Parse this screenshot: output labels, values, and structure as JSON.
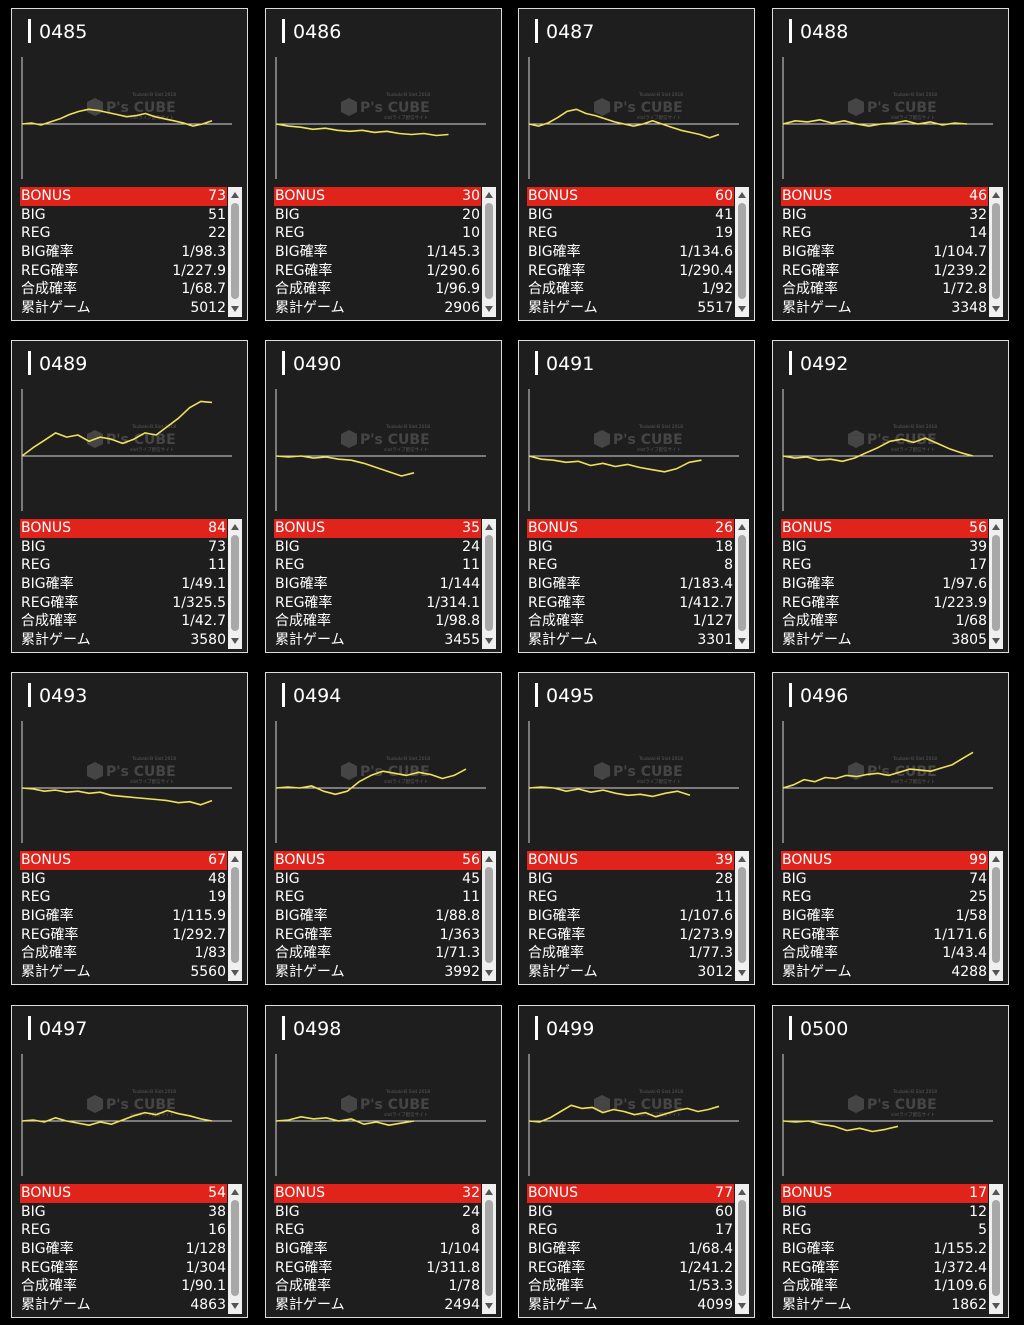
{
  "labels": {
    "bonus": "BONUS",
    "big": "BIG",
    "reg": "REG",
    "big_rate": "BIG確率",
    "reg_rate": "REG確率",
    "combined_rate": "合成確率",
    "total_games": "累計ゲーム"
  },
  "watermark": {
    "brand": "P's CUBE",
    "top": "Tsubaki-B Slot 2018",
    "sub": "slotライブ配信サイト"
  },
  "colors": {
    "accent_red": "#e0241b",
    "line_yellow": "#f0e05a",
    "card_bg": "#1e1e1e"
  },
  "machines": [
    {
      "id": "0485",
      "bonus": "73",
      "big": "51",
      "reg": "22",
      "big_rate": "1/98.3",
      "reg_rate": "1/227.9",
      "combined_rate": "1/68.7",
      "total_games": "5012",
      "series": [
        0,
        1,
        -1,
        2,
        5,
        9,
        12,
        14,
        13,
        11,
        9,
        7,
        8,
        10,
        7,
        5,
        3,
        1,
        -2,
        0,
        3
      ]
    },
    {
      "id": "0486",
      "bonus": "30",
      "big": "20",
      "reg": "10",
      "big_rate": "1/145.3",
      "reg_rate": "1/290.6",
      "combined_rate": "1/96.9",
      "total_games": "2906",
      "series": [
        0,
        -2,
        -3,
        -5,
        -4,
        -6,
        -7,
        -6,
        -8,
        -7,
        -9,
        -10,
        -9,
        -11,
        -10
      ]
    },
    {
      "id": "0487",
      "bonus": "60",
      "big": "41",
      "reg": "19",
      "big_rate": "1/134.6",
      "reg_rate": "1/290.4",
      "combined_rate": "1/92",
      "total_games": "5517",
      "series": [
        0,
        -2,
        1,
        6,
        12,
        14,
        10,
        8,
        5,
        2,
        0,
        -2,
        0,
        3,
        0,
        -3,
        -6,
        -8,
        -10,
        -13,
        -10
      ]
    },
    {
      "id": "0488",
      "bonus": "46",
      "big": "32",
      "reg": "14",
      "big_rate": "1/104.7",
      "reg_rate": "1/239.2",
      "combined_rate": "1/72.8",
      "total_games": "3348",
      "series": [
        0,
        3,
        2,
        4,
        1,
        3,
        0,
        -2,
        0,
        1,
        3,
        0,
        2,
        -1,
        1,
        0
      ]
    },
    {
      "id": "0489",
      "bonus": "84",
      "big": "73",
      "reg": "11",
      "big_rate": "1/49.1",
      "reg_rate": "1/325.5",
      "combined_rate": "1/42.7",
      "total_games": "3580",
      "series": [
        0,
        8,
        15,
        22,
        18,
        20,
        14,
        18,
        16,
        12,
        16,
        22,
        20,
        28,
        36,
        46,
        52,
        51
      ]
    },
    {
      "id": "0490",
      "bonus": "35",
      "big": "24",
      "reg": "11",
      "big_rate": "1/144",
      "reg_rate": "1/314.1",
      "combined_rate": "1/98.8",
      "total_games": "3455",
      "series": [
        0,
        -1,
        0,
        -2,
        -1,
        -3,
        -4,
        -7,
        -11,
        -15,
        -19,
        -16
      ]
    },
    {
      "id": "0491",
      "bonus": "26",
      "big": "18",
      "reg": "8",
      "big_rate": "1/183.4",
      "reg_rate": "1/412.7",
      "combined_rate": "1/127",
      "total_games": "3301",
      "series": [
        0,
        -3,
        -4,
        -6,
        -5,
        -9,
        -7,
        -10,
        -8,
        -11,
        -13,
        -15,
        -12,
        -6,
        -4
      ]
    },
    {
      "id": "0492",
      "bonus": "56",
      "big": "39",
      "reg": "17",
      "big_rate": "1/97.6",
      "reg_rate": "1/223.9",
      "combined_rate": "1/68",
      "total_games": "3805",
      "series": [
        0,
        -2,
        -1,
        -4,
        -3,
        -5,
        -2,
        3,
        8,
        14,
        16,
        13,
        17,
        12,
        7,
        3,
        0
      ]
    },
    {
      "id": "0493",
      "bonus": "67",
      "big": "48",
      "reg": "19",
      "big_rate": "1/115.9",
      "reg_rate": "1/292.7",
      "combined_rate": "1/83",
      "total_games": "5560",
      "series": [
        0,
        -1,
        -3,
        -2,
        -4,
        -3,
        -5,
        -4,
        -7,
        -8,
        -9,
        -10,
        -11,
        -12,
        -14,
        -13,
        -16,
        -12
      ]
    },
    {
      "id": "0494",
      "bonus": "56",
      "big": "45",
      "reg": "11",
      "big_rate": "1/88.8",
      "reg_rate": "1/363",
      "combined_rate": "1/71.3",
      "total_games": "3992",
      "series": [
        0,
        1,
        0,
        2,
        -3,
        -6,
        -3,
        6,
        12,
        16,
        14,
        12,
        15,
        13,
        9,
        12,
        18
      ]
    },
    {
      "id": "0495",
      "bonus": "39",
      "big": "28",
      "reg": "11",
      "big_rate": "1/107.6",
      "reg_rate": "1/273.9",
      "combined_rate": "1/77.3",
      "total_games": "3012",
      "series": [
        0,
        1,
        0,
        -3,
        -1,
        -4,
        -2,
        -5,
        -7,
        -6,
        -8,
        -5,
        -3,
        -7
      ]
    },
    {
      "id": "0496",
      "bonus": "99",
      "big": "74",
      "reg": "25",
      "big_rate": "1/58",
      "reg_rate": "1/171.6",
      "combined_rate": "1/43.4",
      "total_games": "4288",
      "series": [
        0,
        3,
        8,
        6,
        10,
        9,
        12,
        11,
        13,
        14,
        12,
        15,
        18,
        17,
        16,
        19,
        22,
        28,
        34
      ]
    },
    {
      "id": "0497",
      "bonus": "54",
      "big": "38",
      "reg": "16",
      "big_rate": "1/128",
      "reg_rate": "1/304",
      "combined_rate": "1/90.1",
      "total_games": "4863",
      "series": [
        0,
        1,
        -1,
        3,
        0,
        -2,
        -4,
        -1,
        -3,
        1,
        5,
        8,
        6,
        10,
        7,
        5,
        2,
        0
      ]
    },
    {
      "id": "0498",
      "bonus": "32",
      "big": "24",
      "reg": "8",
      "big_rate": "1/104",
      "reg_rate": "1/311.8",
      "combined_rate": "1/78",
      "total_games": "2494",
      "series": [
        0,
        1,
        4,
        2,
        3,
        0,
        2,
        -3,
        -1,
        -4,
        -2,
        0
      ]
    },
    {
      "id": "0499",
      "bonus": "77",
      "big": "60",
      "reg": "17",
      "big_rate": "1/68.4",
      "reg_rate": "1/241.2",
      "combined_rate": "1/53.3",
      "total_games": "4099",
      "series": [
        0,
        -1,
        3,
        9,
        15,
        12,
        13,
        8,
        11,
        9,
        6,
        8,
        4,
        7,
        10,
        12,
        9,
        11,
        14
      ]
    },
    {
      "id": "0500",
      "bonus": "17",
      "big": "12",
      "reg": "5",
      "big_rate": "1/155.2",
      "reg_rate": "1/372.4",
      "combined_rate": "1/109.6",
      "total_games": "1862",
      "series": [
        0,
        -1,
        0,
        -3,
        -5,
        -9,
        -7,
        -10,
        -8,
        -5
      ]
    }
  ]
}
